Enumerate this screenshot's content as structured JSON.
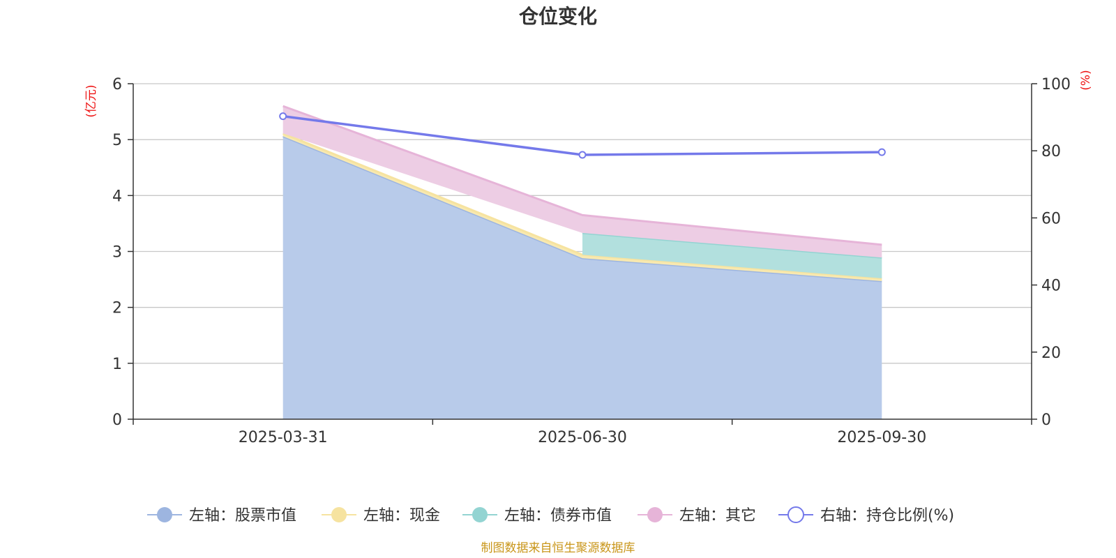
{
  "chart_data": {
    "type": "area",
    "title": "仓位变化",
    "categories": [
      "2025-03-31",
      "2025-06-30",
      "2025-09-30"
    ],
    "left_axis": {
      "unit": "(亿元)",
      "ticks": [
        0,
        1,
        2,
        3,
        4,
        5,
        6
      ],
      "ylim": [
        0,
        6
      ]
    },
    "right_axis": {
      "unit": "(%)",
      "ticks": [
        0,
        20,
        40,
        60,
        80,
        100
      ],
      "ylim": [
        0,
        100
      ]
    },
    "series": [
      {
        "name": "左轴：股票市值",
        "axis": "left",
        "stack": true,
        "color": "#9db5e0",
        "fill": "#b8cbea",
        "values": [
          5.06,
          2.88,
          2.47
        ]
      },
      {
        "name": "左轴：现金",
        "axis": "left",
        "stack": true,
        "color": "#f6e3a0",
        "fill": "#f8e9b0",
        "values": [
          0.05,
          0.06,
          0.05
        ]
      },
      {
        "name": "左轴：债券市值",
        "axis": "left",
        "stack": true,
        "color": "#93d4d2",
        "fill": "#b2e0de",
        "values": [
          0.0,
          0.39,
          0.37
        ]
      },
      {
        "name": "左轴：其它",
        "axis": "left",
        "stack": true,
        "color": "#e6b4d8",
        "fill": "#edcde4",
        "values": [
          0.49,
          0.32,
          0.23
        ]
      },
      {
        "name": "右轴：持仓比例(%)",
        "axis": "right",
        "type": "line",
        "color": "#7479ea",
        "values": [
          90.3,
          78.8,
          79.6
        ]
      }
    ],
    "legend_position": "bottom-center",
    "grid": true
  },
  "footer": {
    "source": "制图数据来自恒生聚源数据库"
  }
}
